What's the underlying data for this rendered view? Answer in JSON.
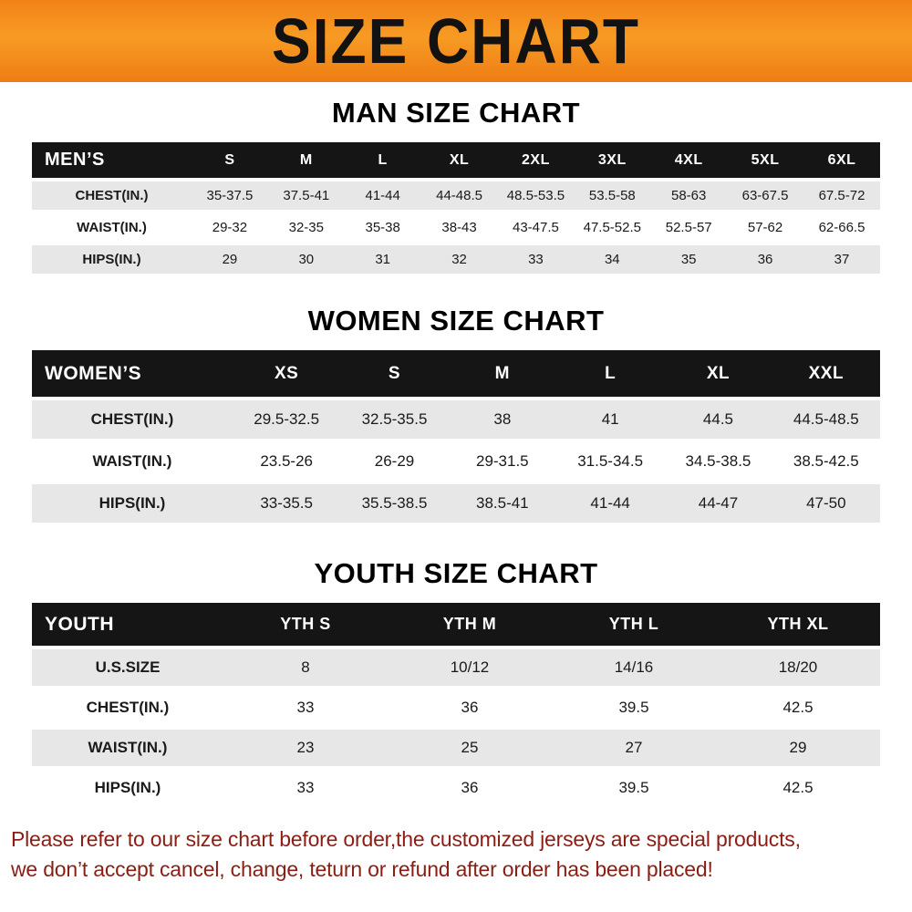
{
  "banner": {
    "title": "SIZE CHART"
  },
  "colors": {
    "banner_orange": "#f28a1b",
    "table_header_bg": "#151515",
    "row_stripe_gray": "#e7e7e7",
    "footer_text_red": "#8a1e14"
  },
  "sections": [
    {
      "heading": "MAN SIZE CHART",
      "table": {
        "header": [
          "MEN’S",
          "S",
          "M",
          "L",
          "XL",
          "2XL",
          "3XL",
          "4XL",
          "5XL",
          "6XL"
        ],
        "rows": [
          {
            "label": "CHEST(IN.)",
            "values": [
              "35-37.5",
              "37.5-41",
              "41-44",
              "44-48.5",
              "48.5-53.5",
              "53.5-58",
              "58-63",
              "63-67.5",
              "67.5-72"
            ]
          },
          {
            "label": "WAIST(IN.)",
            "values": [
              "29-32",
              "32-35",
              "35-38",
              "38-43",
              "43-47.5",
              "47.5-52.5",
              "52.5-57",
              "57-62",
              "62-66.5"
            ]
          },
          {
            "label": "HIPS(IN.)",
            "values": [
              "29",
              "30",
              "31",
              "32",
              "33",
              "34",
              "35",
              "36",
              "37"
            ]
          }
        ]
      }
    },
    {
      "heading": "WOMEN SIZE CHART",
      "table": {
        "header": [
          "WOMEN’S",
          "XS",
          "S",
          "M",
          "L",
          "XL",
          "XXL"
        ],
        "rows": [
          {
            "label": "CHEST(IN.)",
            "values": [
              "29.5-32.5",
              "32.5-35.5",
              "38",
              "41",
              "44.5",
              "44.5-48.5"
            ]
          },
          {
            "label": "WAIST(IN.)",
            "values": [
              "23.5-26",
              "26-29",
              "29-31.5",
              "31.5-34.5",
              "34.5-38.5",
              "38.5-42.5"
            ]
          },
          {
            "label": "HIPS(IN.)",
            "values": [
              "33-35.5",
              "35.5-38.5",
              "38.5-41",
              "41-44",
              "44-47",
              "47-50"
            ]
          }
        ]
      }
    },
    {
      "heading": "YOUTH SIZE CHART",
      "table": {
        "header": [
          "YOUTH",
          "YTH S",
          "YTH M",
          "YTH L",
          "YTH XL"
        ],
        "rows": [
          {
            "label": "U.S.SIZE",
            "values": [
              "8",
              "10/12",
              "14/16",
              "18/20"
            ]
          },
          {
            "label": "CHEST(IN.)",
            "values": [
              "33",
              "36",
              "39.5",
              "42.5"
            ]
          },
          {
            "label": "WAIST(IN.)",
            "values": [
              "23",
              "25",
              "27",
              "29"
            ]
          },
          {
            "label": "HIPS(IN.)",
            "values": [
              "33",
              "36",
              "39.5",
              "42.5"
            ]
          }
        ]
      }
    }
  ],
  "footer": {
    "line1": "Please refer to our size chart before order,the customized jerseys are special products,",
    "line2": "we don’t accept cancel, change, teturn or refund after order has been placed!"
  }
}
